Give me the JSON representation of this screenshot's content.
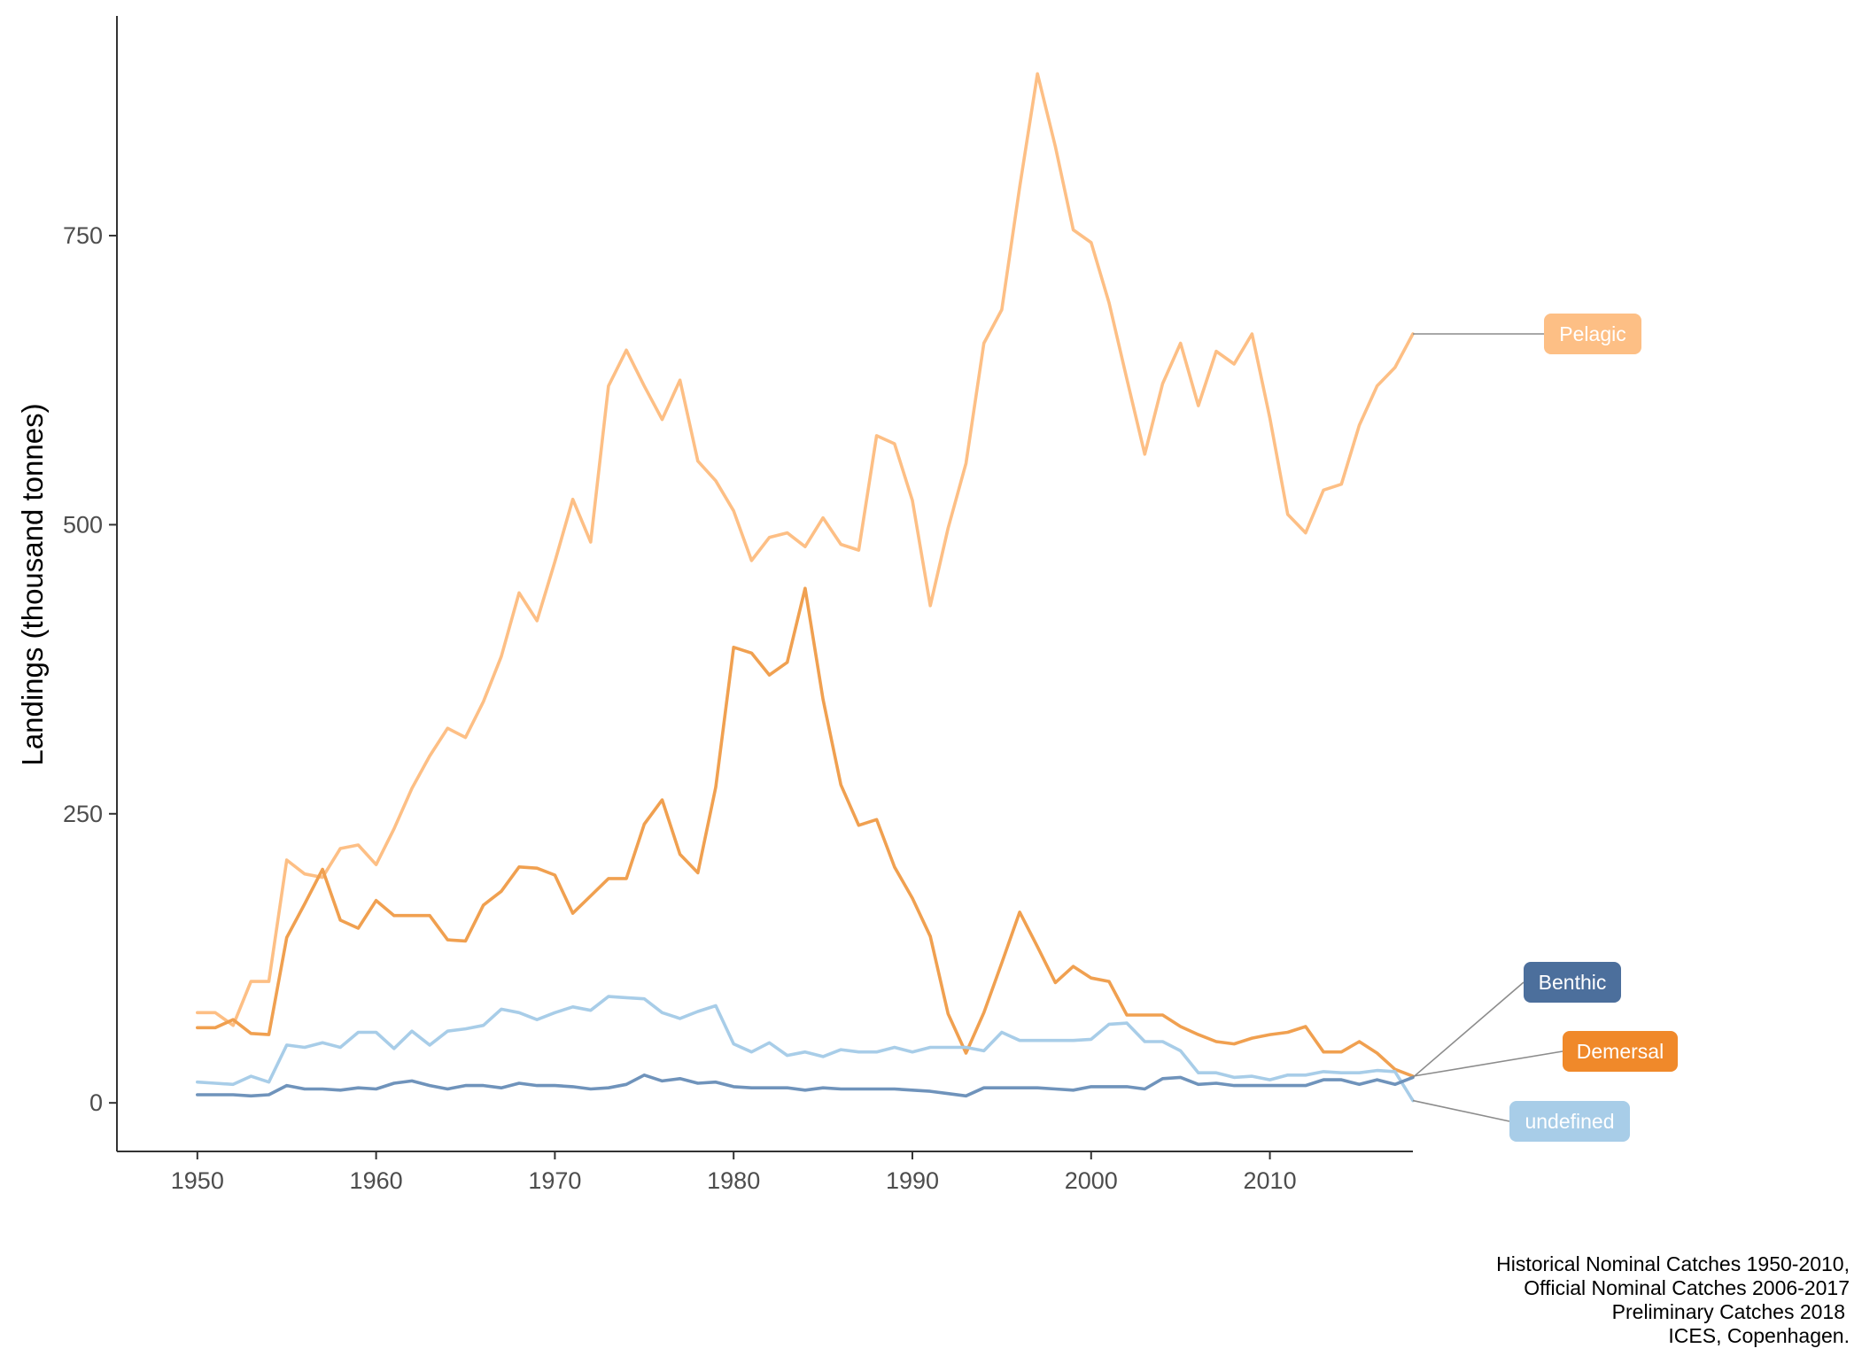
{
  "chart_data": {
    "type": "line",
    "title": "",
    "xlabel": "",
    "ylabel": "Landings (thousand tonnes)",
    "xlim": [
      1945.5,
      2018
    ],
    "ylim": [
      -42,
      940
    ],
    "x_ticks": [
      1950,
      1960,
      1970,
      1980,
      1990,
      2000,
      2010
    ],
    "y_ticks": [
      0,
      250,
      500,
      750
    ],
    "grid": false,
    "legend": "direct labels at right end of lines",
    "x": [
      1950,
      1951,
      1952,
      1953,
      1954,
      1955,
      1956,
      1957,
      1958,
      1959,
      1960,
      1961,
      1962,
      1963,
      1964,
      1965,
      1966,
      1967,
      1968,
      1969,
      1970,
      1971,
      1972,
      1973,
      1974,
      1975,
      1976,
      1977,
      1978,
      1979,
      1980,
      1981,
      1982,
      1983,
      1984,
      1985,
      1986,
      1987,
      1988,
      1989,
      1990,
      1991,
      1992,
      1993,
      1994,
      1995,
      1996,
      1997,
      1998,
      1999,
      2000,
      2001,
      2002,
      2003,
      2004,
      2005,
      2006,
      2007,
      2008,
      2009,
      2010,
      2011,
      2012,
      2013,
      2014,
      2015,
      2016,
      2017,
      2018
    ],
    "series": [
      {
        "name": "Pelagic",
        "color": "#fdbf85",
        "values": [
          78,
          78,
          67,
          105,
          105,
          210,
          198,
          195,
          220,
          223,
          206,
          237,
          272,
          300,
          324,
          316,
          347,
          386,
          441,
          417,
          468,
          522,
          485,
          620,
          651,
          620,
          591,
          625,
          555,
          538,
          512,
          469,
          489,
          493,
          481,
          506,
          483,
          478,
          577,
          570,
          521,
          430,
          497,
          553,
          657,
          686,
          792,
          890,
          827,
          755,
          744,
          692,
          626,
          561,
          622,
          657,
          603,
          650,
          639,
          665,
          592,
          509,
          493,
          530,
          535,
          586,
          620,
          636,
          665
        ]
      },
      {
        "name": "Demersal",
        "color": "#f0a050",
        "values": [
          65,
          65,
          72,
          60,
          59,
          143,
          172,
          202,
          158,
          151,
          175,
          162,
          162,
          162,
          141,
          140,
          171,
          183,
          204,
          203,
          197,
          164,
          179,
          194,
          194,
          241,
          262,
          215,
          199,
          273,
          394,
          389,
          370,
          381,
          445,
          349,
          275,
          240,
          245,
          204,
          177,
          144,
          77,
          43,
          78,
          121,
          165,
          135,
          104,
          118,
          108,
          105,
          76,
          76,
          76,
          66,
          59,
          53,
          51,
          56,
          59,
          61,
          66,
          44,
          44,
          53,
          43,
          29,
          23
        ]
      },
      {
        "name": "undefined",
        "color": "#a8cde8",
        "values": [
          18,
          17,
          16,
          23,
          18,
          50,
          48,
          52,
          48,
          61,
          61,
          47,
          62,
          50,
          62,
          64,
          67,
          81,
          78,
          72,
          78,
          83,
          80,
          92,
          91,
          90,
          78,
          73,
          79,
          84,
          51,
          44,
          52,
          41,
          44,
          40,
          46,
          44,
          44,
          48,
          44,
          48,
          48,
          48,
          45,
          61,
          54,
          54,
          54,
          54,
          55,
          68,
          69,
          53,
          53,
          45,
          26,
          26,
          22,
          23,
          20,
          24,
          24,
          27,
          26,
          26,
          28,
          27,
          2
        ]
      },
      {
        "name": "Benthic",
        "color": "#6f93bb",
        "values": [
          7,
          7,
          7,
          6,
          7,
          15,
          12,
          12,
          11,
          13,
          12,
          17,
          19,
          15,
          12,
          15,
          15,
          13,
          17,
          15,
          15,
          14,
          12,
          13,
          16,
          24,
          19,
          21,
          17,
          18,
          14,
          13,
          13,
          13,
          11,
          13,
          12,
          12,
          12,
          12,
          11,
          10,
          8,
          6,
          13,
          13,
          13,
          13,
          12,
          11,
          14,
          14,
          14,
          12,
          21,
          22,
          16,
          17,
          15,
          15,
          15,
          15,
          15,
          20,
          20,
          16,
          20,
          16,
          22
        ]
      }
    ]
  },
  "end_labels": [
    {
      "text": "Pelagic",
      "series": "Pelagic",
      "bg": "#fdbf85"
    },
    {
      "text": "Benthic",
      "series": "Benthic",
      "bg": "#4c6f9c"
    },
    {
      "text": "Demersal",
      "series": "Demersal",
      "bg": "#f0892a"
    },
    {
      "text": "undefined",
      "series": "undefined",
      "bg": "#a8cde8"
    }
  ],
  "caption": [
    "Historical Nominal Catches 1950-2010,",
    "Official Nominal Catches 2006-2017",
    "Preliminary Catches 2018",
    "ICES, Copenhagen."
  ]
}
